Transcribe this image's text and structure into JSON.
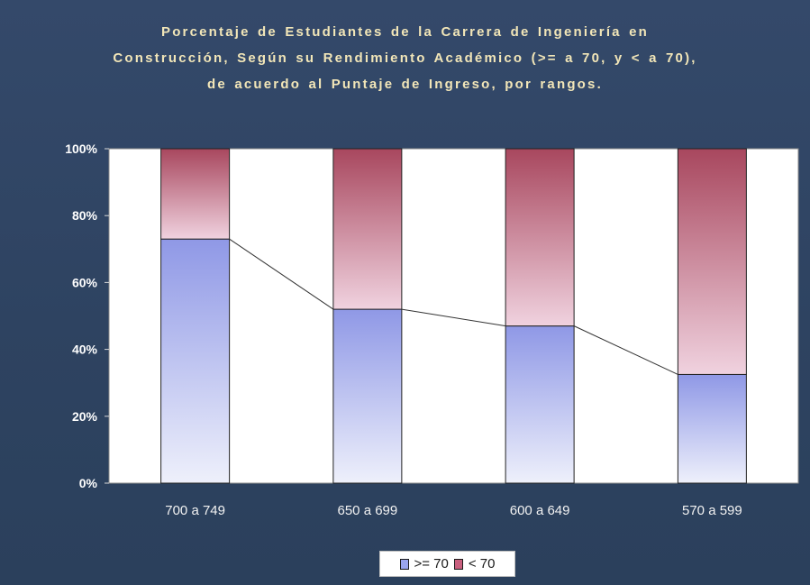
{
  "title_lines": [
    "Porcentaje de Estudiantes de la Carrera de Ingeniería en",
    "Construcción, Según su Rendimiento Académico (>= a 70, y < a 70),",
    "de acuerdo al Puntaje de Ingreso, por rangos."
  ],
  "colors": {
    "background": "#2f4563",
    "title": "#f2e6b8",
    "series_ge70_top": "#8f98e6",
    "series_ge70_bottom": "#eef0fb",
    "series_lt70_top": "#a8475e",
    "series_lt70_bottom": "#f0d2df"
  },
  "legend": [
    {
      "label": ">= 70",
      "swatch_color": "#9aa5ee"
    },
    {
      "label": "< 70",
      "swatch_color": "#c9607f"
    }
  ],
  "chart_data": {
    "type": "bar",
    "stacked": true,
    "percent_stacked": true,
    "title": "Porcentaje de Estudiantes de la Carrera de Ingeniería en Construcción, Según su Rendimiento Académico (>= a 70, y < a 70), de acuerdo al Puntaje de Ingreso, por rangos.",
    "categories": [
      "700 a 749",
      "650 a 699",
      "600 a 649",
      "570 a 599"
    ],
    "series": [
      {
        "name": ">= 70",
        "values": [
          73,
          52,
          47,
          32.5
        ]
      },
      {
        "name": "< 70",
        "values": [
          27,
          48,
          53,
          67.5
        ]
      }
    ],
    "ylim": [
      0,
      100
    ],
    "yticks": [
      "0%",
      "20%",
      "40%",
      "60%",
      "80%",
      "100%"
    ],
    "ytick_values": [
      0,
      20,
      40,
      60,
      80,
      100
    ],
    "series_lines": "connect top of '>= 70' segment across bars",
    "grid": false,
    "legend_position": "bottom"
  }
}
